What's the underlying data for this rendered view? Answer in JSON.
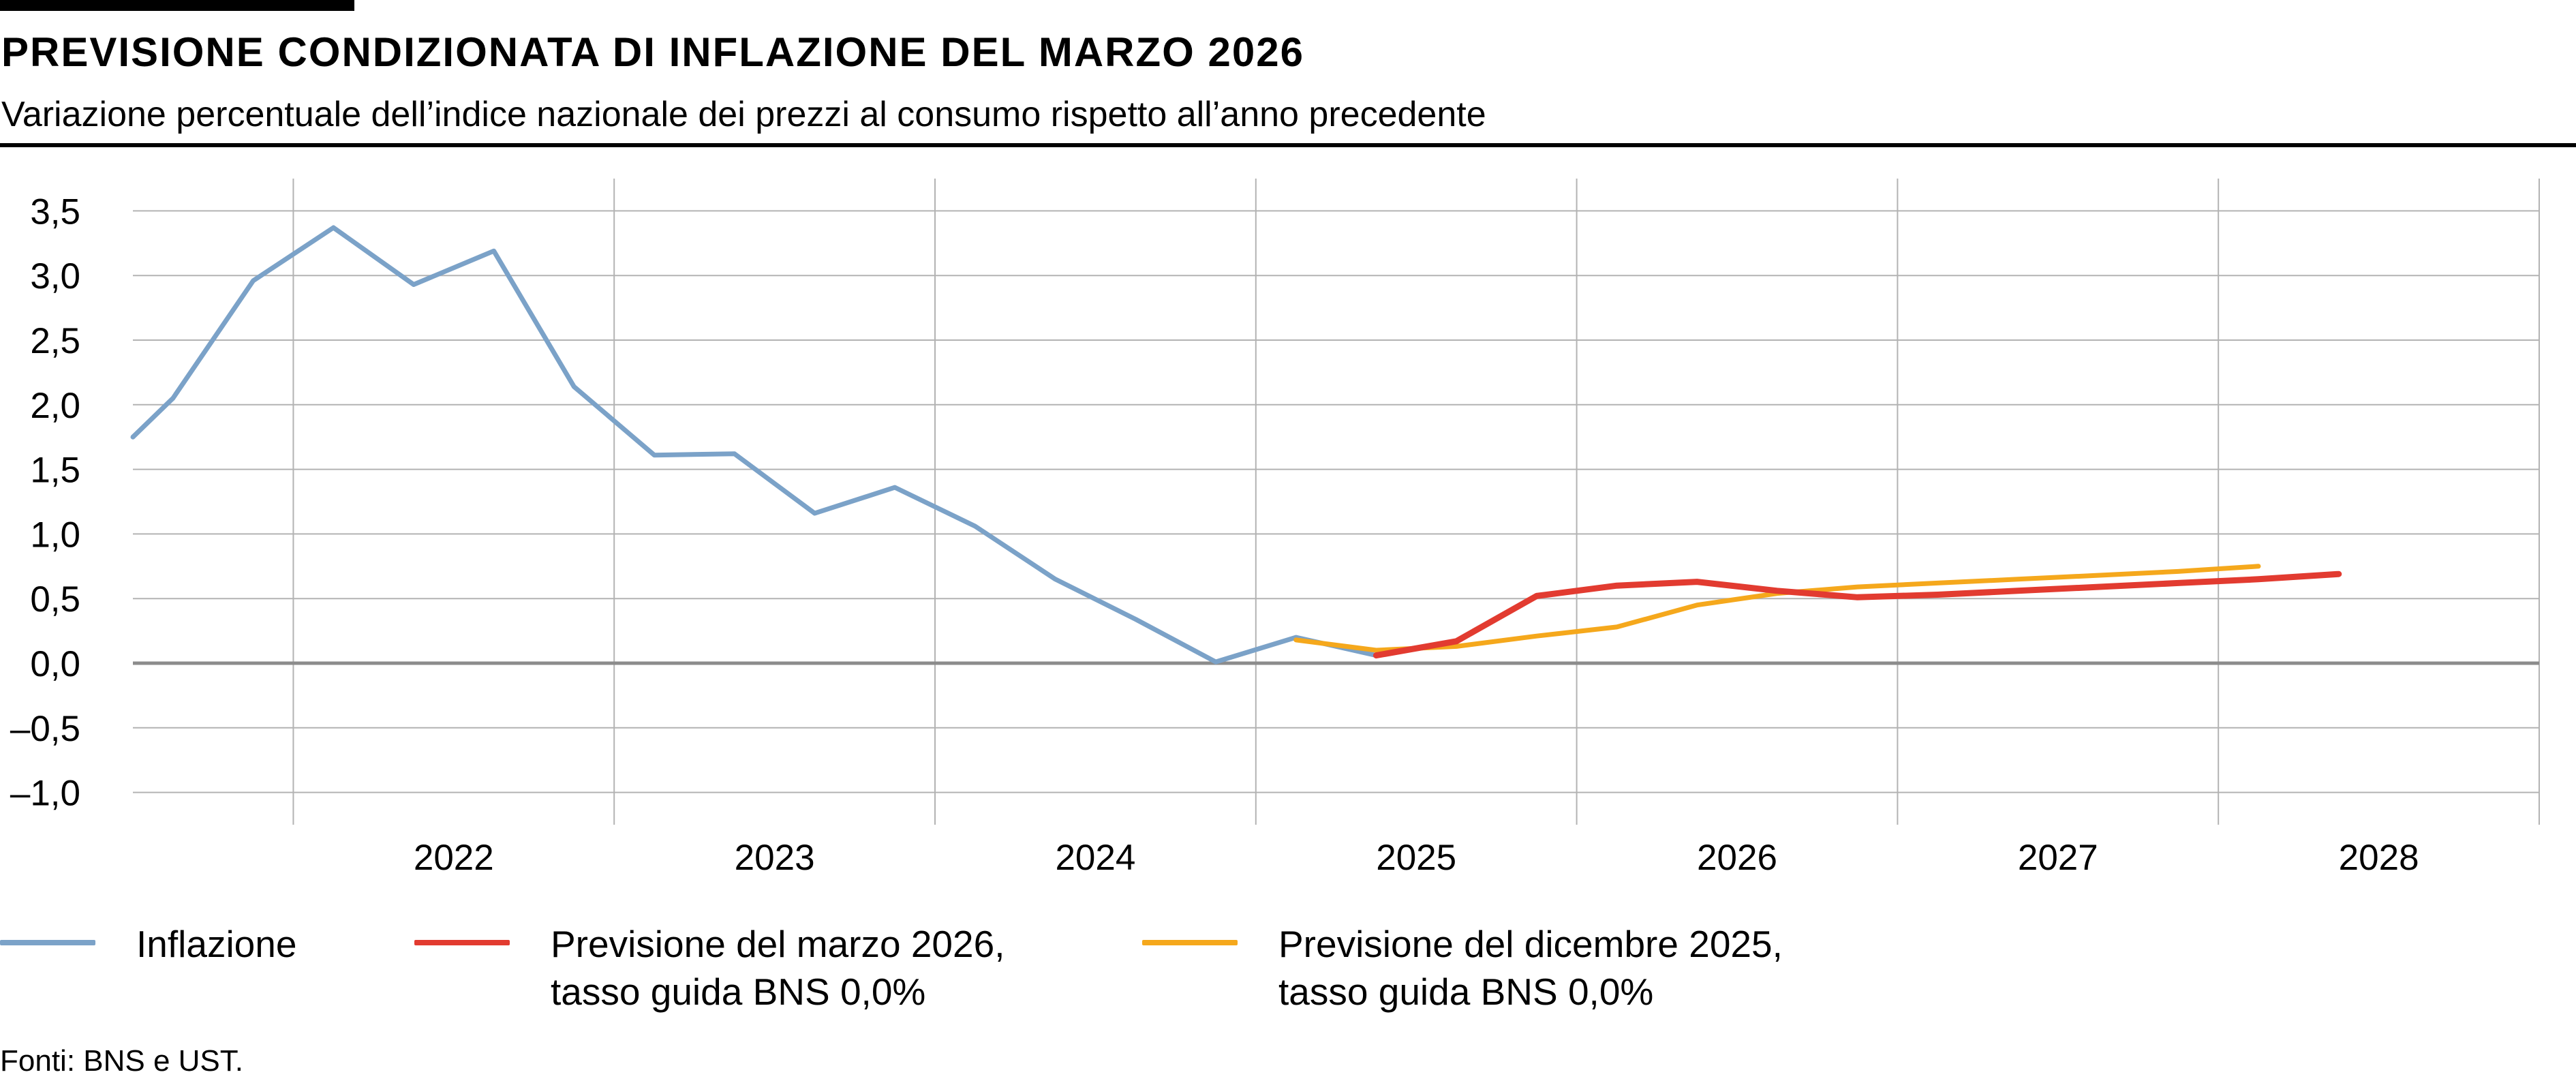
{
  "header": {
    "title": "PREVISIONE CONDIZIONATA DI INFLAZIONE DEL MARZO 2026",
    "subtitle": "Variazione percentuale dell’indice nazionale dei prezzi al consumo rispetto all’anno precedente"
  },
  "legend": [
    {
      "line1": "Inflazione",
      "line2": "",
      "color": "#7ba2c8"
    },
    {
      "line1": "Previsione del marzo 2026,",
      "line2": "tasso guida BNS 0,0%",
      "color": "#e23b30"
    },
    {
      "line1": "Previsione del dicembre 2025,",
      "line2": "tasso guida BNS 0,0%",
      "color": "#f5a81c"
    }
  ],
  "source": "Fonti: BNS e UST.",
  "chart_data": {
    "type": "line",
    "title": "PREVISIONE CONDIZIONATA DI INFLAZIONE DEL MARZO 2026",
    "subtitle": "Variazione percentuale dell’indice nazionale dei prezzi al consumo rispetto all’anno precedente",
    "xlim": [
      2021.5,
      2029.0
    ],
    "ylim": [
      -1.25,
      3.75
    ],
    "y_ticks": [
      -1.0,
      -0.5,
      0.0,
      0.5,
      1.0,
      1.5,
      2.0,
      2.5,
      3.0,
      3.5
    ],
    "y_tick_labels": [
      "–1,0",
      "–0,5",
      "0,0",
      "0,5",
      "1,0",
      "1,5",
      "2,0",
      "2,5",
      "3,0",
      "3,5"
    ],
    "x_tick_labels": [
      "2022",
      "2023",
      "2024",
      "2025",
      "2026",
      "2027",
      "2028"
    ],
    "grid": true,
    "legend_position": "bottom",
    "series": [
      {
        "name": "Inflazione",
        "color": "#7ba2c8",
        "points": [
          [
            2021.5,
            1.75
          ],
          [
            2021.625,
            2.05
          ],
          [
            2021.875,
            2.96
          ],
          [
            2022.125,
            3.37
          ],
          [
            2022.375,
            2.93
          ],
          [
            2022.625,
            3.19
          ],
          [
            2022.875,
            2.14
          ],
          [
            2023.125,
            1.61
          ],
          [
            2023.375,
            1.62
          ],
          [
            2023.625,
            1.16
          ],
          [
            2023.875,
            1.36
          ],
          [
            2024.125,
            1.06
          ],
          [
            2024.375,
            0.65
          ],
          [
            2024.625,
            0.34
          ],
          [
            2024.875,
            0.01
          ],
          [
            2025.125,
            0.2
          ],
          [
            2025.375,
            0.06
          ]
        ]
      },
      {
        "name": "Previsione del marzo 2026, tasso guida BNS 0,0%",
        "color": "#e23b30",
        "points": [
          [
            2025.375,
            0.06
          ],
          [
            2025.625,
            0.17
          ],
          [
            2025.875,
            0.52
          ],
          [
            2026.125,
            0.6
          ],
          [
            2026.375,
            0.63
          ],
          [
            2026.625,
            0.56
          ],
          [
            2026.875,
            0.51
          ],
          [
            2027.125,
            0.53
          ],
          [
            2027.375,
            0.56
          ],
          [
            2027.625,
            0.59
          ],
          [
            2027.875,
            0.62
          ],
          [
            2028.125,
            0.65
          ],
          [
            2028.375,
            0.69
          ]
        ]
      },
      {
        "name": "Previsione del dicembre 2025, tasso guida BNS 0,0%",
        "color": "#f5a81c",
        "points": [
          [
            2025.125,
            0.18
          ],
          [
            2025.375,
            0.1
          ],
          [
            2025.625,
            0.13
          ],
          [
            2025.875,
            0.21
          ],
          [
            2026.125,
            0.28
          ],
          [
            2026.375,
            0.45
          ],
          [
            2026.625,
            0.54
          ],
          [
            2026.875,
            0.59
          ],
          [
            2027.125,
            0.62
          ],
          [
            2027.375,
            0.65
          ],
          [
            2027.625,
            0.68
          ],
          [
            2027.875,
            0.71
          ],
          [
            2028.125,
            0.75
          ]
        ]
      }
    ]
  }
}
